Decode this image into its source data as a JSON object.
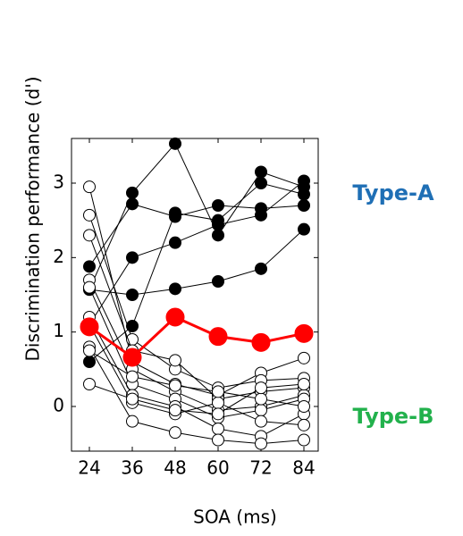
{
  "chart_data": {
    "type": "line",
    "x_label": "SOA (ms)",
    "y_label": "Discrimination performance (d')",
    "x": [
      24,
      36,
      48,
      60,
      72,
      84
    ],
    "xlim": [
      19,
      88
    ],
    "xticks": [
      24,
      36,
      48,
      60,
      72,
      84
    ],
    "ylim": [
      -0.6,
      3.6
    ],
    "yticks": [
      0,
      1,
      2,
      3
    ],
    "annotations": [
      {
        "text": "Type-A",
        "color": "#1f6fb5"
      },
      {
        "text": "Type-B",
        "color": "#22b14c"
      }
    ],
    "series": [
      {
        "color": "#000000",
        "marker_fill": "#000000",
        "values": [
          1.57,
          2.87,
          3.53,
          2.3,
          3.15,
          2.95
        ]
      },
      {
        "color": "#000000",
        "marker_fill": "#000000",
        "values": [
          1.88,
          2.72,
          2.55,
          2.7,
          2.66,
          2.7
        ]
      },
      {
        "color": "#000000",
        "marker_fill": "#000000",
        "values": [
          1.1,
          2.0,
          2.2,
          2.44,
          2.57,
          3.03
        ]
      },
      {
        "color": "#000000",
        "marker_fill": "#000000",
        "values": [
          0.6,
          1.08,
          2.6,
          2.5,
          3.0,
          2.85
        ]
      },
      {
        "color": "#000000",
        "marker_fill": "#000000",
        "values": [
          1.57,
          1.5,
          1.58,
          1.68,
          1.85,
          2.38
        ]
      },
      {
        "color": "#000000",
        "marker_fill": "#ffffff",
        "values": [
          2.95,
          0.6,
          0.3,
          0.15,
          0.45,
          0.65
        ]
      },
      {
        "color": "#000000",
        "marker_fill": "#ffffff",
        "values": [
          2.57,
          0.9,
          0.5,
          0.25,
          0.35,
          0.38
        ]
      },
      {
        "color": "#000000",
        "marker_fill": "#ffffff",
        "values": [
          2.3,
          0.75,
          0.62,
          0.1,
          0.2,
          0.25
        ]
      },
      {
        "color": "#000000",
        "marker_fill": "#ffffff",
        "values": [
          1.7,
          0.5,
          0.2,
          -0.05,
          0.0,
          0.15
        ]
      },
      {
        "color": "#000000",
        "marker_fill": "#ffffff",
        "values": [
          1.6,
          0.3,
          0.1,
          -0.15,
          -0.05,
          0.1
        ]
      },
      {
        "color": "#000000",
        "marker_fill": "#ffffff",
        "values": [
          1.2,
          0.15,
          0.0,
          -0.3,
          -0.4,
          -0.1
        ]
      },
      {
        "color": "#000000",
        "marker_fill": "#ffffff",
        "values": [
          1.1,
          0.05,
          -0.1,
          0.05,
          -0.2,
          -0.25
        ]
      },
      {
        "color": "#000000",
        "marker_fill": "#ffffff",
        "values": [
          0.8,
          -0.2,
          -0.35,
          -0.45,
          -0.5,
          -0.45
        ]
      },
      {
        "color": "#000000",
        "marker_fill": "#ffffff",
        "values": [
          0.75,
          0.4,
          0.28,
          0.2,
          0.1,
          0.0
        ]
      },
      {
        "color": "#000000",
        "marker_fill": "#ffffff",
        "values": [
          0.3,
          0.1,
          -0.05,
          -0.1,
          0.25,
          0.3
        ]
      },
      {
        "color": "#ff0000",
        "marker_fill": "#ff0000",
        "emphasis": true,
        "values": [
          1.07,
          0.66,
          1.2,
          0.94,
          0.86,
          0.98
        ]
      }
    ]
  }
}
